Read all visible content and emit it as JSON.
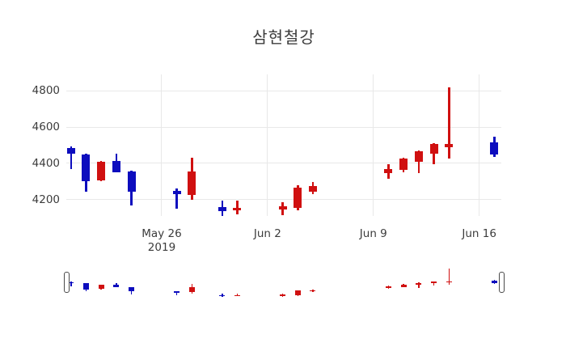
{
  "chart_data": {
    "type": "candlestick",
    "title": "삼현철강",
    "x_axis": {
      "day_range": [
        -6.31,
        22.46
      ],
      "ticks": [
        {
          "label": "May 26",
          "sub_label": "2019",
          "day": 0
        },
        {
          "label": "Jun 2",
          "sub_label": "",
          "day": 7
        },
        {
          "label": "Jun 9",
          "sub_label": "",
          "day": 14
        },
        {
          "label": "Jun 16",
          "sub_label": "",
          "day": 21
        }
      ]
    },
    "y_axis": {
      "range": [
        4110,
        4890
      ],
      "ticks": [
        {
          "label": "4200",
          "value": 4200
        },
        {
          "label": "4400",
          "value": 4400
        },
        {
          "label": "4600",
          "value": 4600
        },
        {
          "label": "4800",
          "value": 4800
        }
      ]
    },
    "colors": {
      "increasing": "#d01010",
      "decreasing": "#0d0dbe",
      "gridline": "#e8e8e8",
      "text": "#3c3c3c"
    },
    "rangeslider": {
      "visible": true
    },
    "candles": [
      {
        "date": "May 20",
        "day": -6,
        "open": 4485,
        "high": 4495,
        "low": 4370,
        "close": 4455
      },
      {
        "date": "May 21",
        "day": -5,
        "open": 4450,
        "high": 4455,
        "low": 4245,
        "close": 4300
      },
      {
        "date": "May 22",
        "day": -4,
        "open": 4305,
        "high": 4415,
        "low": 4300,
        "close": 4410
      },
      {
        "date": "May 23",
        "day": -3,
        "open": 4415,
        "high": 4455,
        "low": 4350,
        "close": 4350
      },
      {
        "date": "May 24",
        "day": -2,
        "open": 4355,
        "high": 4360,
        "low": 4170,
        "close": 4245
      },
      {
        "date": "May 27",
        "day": 1,
        "open": 4250,
        "high": 4260,
        "low": 4150,
        "close": 4230
      },
      {
        "date": "May 28",
        "day": 2,
        "open": 4225,
        "high": 4430,
        "low": 4200,
        "close": 4355
      },
      {
        "date": "May 30",
        "day": 4,
        "open": 4160,
        "high": 4195,
        "low": 4110,
        "close": 4135
      },
      {
        "date": "May 31",
        "day": 5,
        "open": 4140,
        "high": 4195,
        "low": 4120,
        "close": 4155
      },
      {
        "date": "Jun 3",
        "day": 8,
        "open": 4145,
        "high": 4185,
        "low": 4115,
        "close": 4165
      },
      {
        "date": "Jun 4",
        "day": 9,
        "open": 4155,
        "high": 4280,
        "low": 4140,
        "close": 4265
      },
      {
        "date": "Jun 5",
        "day": 10,
        "open": 4245,
        "high": 4295,
        "low": 4230,
        "close": 4275
      },
      {
        "date": "Jun 10",
        "day": 15,
        "open": 4345,
        "high": 4395,
        "low": 4315,
        "close": 4370
      },
      {
        "date": "Jun 11",
        "day": 16,
        "open": 4365,
        "high": 4430,
        "low": 4350,
        "close": 4425
      },
      {
        "date": "Jun 12",
        "day": 17,
        "open": 4410,
        "high": 4470,
        "low": 4345,
        "close": 4465
      },
      {
        "date": "Jun 13",
        "day": 18,
        "open": 4455,
        "high": 4510,
        "low": 4395,
        "close": 4505
      },
      {
        "date": "Jun 14",
        "day": 19,
        "open": 4490,
        "high": 4820,
        "low": 4425,
        "close": 4505
      },
      {
        "date": "Jun 17",
        "day": 22,
        "open": 4515,
        "high": 4545,
        "low": 4435,
        "close": 4450
      }
    ]
  }
}
